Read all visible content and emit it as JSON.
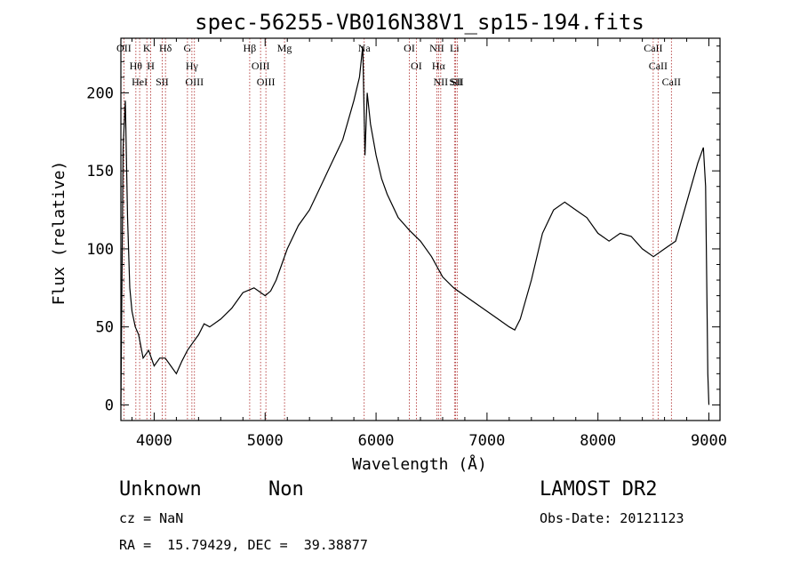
{
  "chart_data": {
    "type": "line",
    "title": "spec-56255-VB016N38V1_sp15-194.fits",
    "xlabel": "Wavelength (Å)",
    "ylabel": "Flux (relative)",
    "xlim": [
      3700,
      9100
    ],
    "ylim": [
      -10,
      235
    ],
    "xticks": [
      4000,
      5000,
      6000,
      7000,
      8000,
      9000
    ],
    "yticks": [
      0,
      50,
      100,
      150,
      200
    ],
    "grid": false,
    "line_color": "#000000",
    "marker_color": "#aa2222",
    "series": [
      {
        "x": [
          3700,
          3720,
          3740,
          3760,
          3780,
          3800,
          3830,
          3860,
          3900,
          3950,
          4000,
          4050,
          4100,
          4150,
          4200,
          4250,
          4300,
          4350,
          4400,
          4450,
          4500,
          4600,
          4700,
          4800,
          4900,
          5000,
          5050,
          5100,
          5200,
          5300,
          5400,
          5500,
          5600,
          5700,
          5800,
          5850,
          5880,
          5900,
          5920,
          5950,
          6000,
          6050,
          6100,
          6200,
          6300,
          6400,
          6500,
          6600,
          6700,
          6800,
          6900,
          7000,
          7100,
          7200,
          7250,
          7300,
          7400,
          7500,
          7600,
          7700,
          7800,
          7900,
          8000,
          8100,
          8200,
          8300,
          8400,
          8500,
          8600,
          8700,
          8800,
          8900,
          8950,
          8970,
          8990,
          9000
        ],
        "y": [
          0,
          165,
          195,
          120,
          75,
          60,
          50,
          45,
          30,
          35,
          25,
          30,
          30,
          25,
          20,
          28,
          35,
          40,
          45,
          52,
          50,
          55,
          62,
          72,
          75,
          70,
          73,
          80,
          100,
          115,
          125,
          140,
          155,
          170,
          195,
          210,
          230,
          160,
          200,
          180,
          160,
          145,
          135,
          120,
          112,
          105,
          95,
          82,
          75,
          70,
          65,
          60,
          55,
          50,
          48,
          55,
          80,
          110,
          125,
          130,
          125,
          120,
          110,
          105,
          110,
          108,
          100,
          95,
          100,
          105,
          130,
          155,
          165,
          140,
          20,
          0
        ]
      }
    ],
    "lines_top": [
      {
        "x": 3727,
        "label": "OII"
      },
      {
        "x": 3835,
        "label": "Hθ"
      },
      {
        "x": 3869,
        "label": "HeI"
      },
      {
        "x": 3934,
        "label": "K"
      },
      {
        "x": 3969,
        "label": "H"
      },
      {
        "x": 4072,
        "label": "SII"
      },
      {
        "x": 4102,
        "label": "Hδ"
      },
      {
        "x": 4300,
        "label": "G"
      },
      {
        "x": 4340,
        "label": "Hγ"
      },
      {
        "x": 4363,
        "label": "OIII"
      },
      {
        "x": 4861,
        "label": "Hβ"
      },
      {
        "x": 4959,
        "label": "OIII"
      },
      {
        "x": 5007,
        "label": "OIII"
      },
      {
        "x": 5175,
        "label": "Mg"
      },
      {
        "x": 5893,
        "label": "Na"
      },
      {
        "x": 6300,
        "label": "OI"
      },
      {
        "x": 6363,
        "label": "OI"
      },
      {
        "x": 6548,
        "label": "NII"
      },
      {
        "x": 6563,
        "label": "Hα"
      },
      {
        "x": 6583,
        "label": "NII"
      },
      {
        "x": 6707,
        "label": "Li"
      },
      {
        "x": 6717,
        "label": "SII"
      },
      {
        "x": 6731,
        "label": "SII"
      },
      {
        "x": 8498,
        "label": "CaII"
      },
      {
        "x": 8542,
        "label": "CaII"
      },
      {
        "x": 8662,
        "label": "CaII"
      }
    ]
  },
  "info": {
    "class": "Unknown",
    "subclass": "Non",
    "cz": "cz = NaN",
    "coords": "RA =  15.79429, DEC =  39.38877",
    "survey": "LAMOST DR2",
    "obs_date": "Obs-Date: 20121123"
  }
}
